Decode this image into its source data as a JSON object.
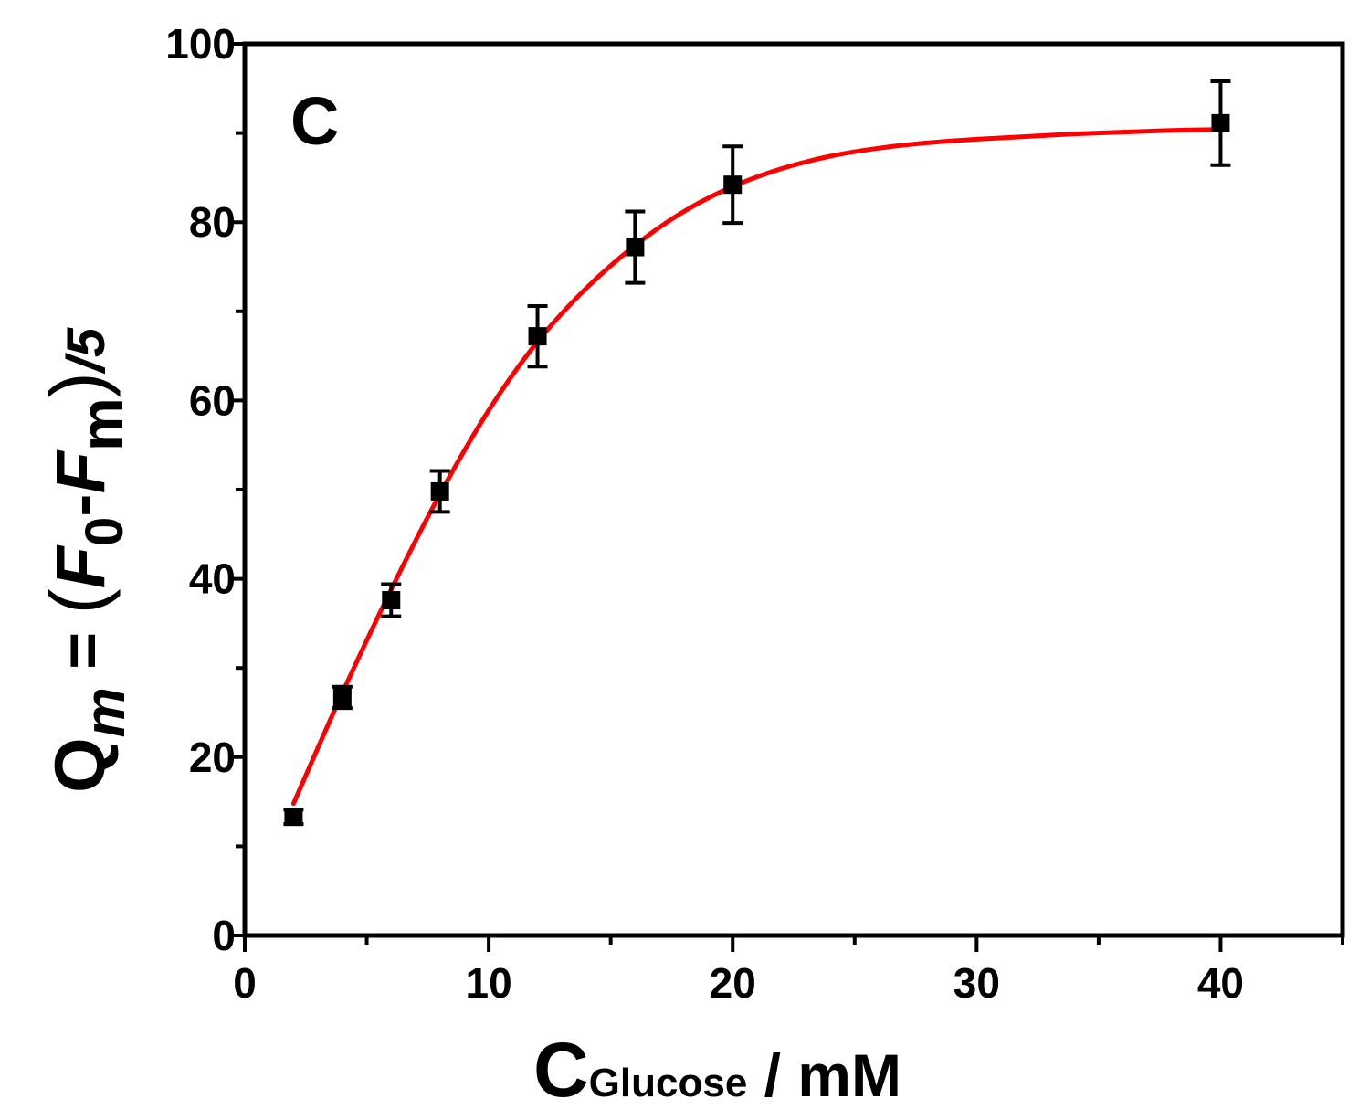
{
  "chart_data": {
    "type": "scatter",
    "panel_label": "C",
    "xlabel": {
      "main": "C",
      "subscript": "Glucose",
      "unit": " / mM"
    },
    "ylabel": {
      "lhs_main": "Q",
      "lhs_sub": "m",
      "eq": " = ",
      "lparen": "(",
      "f0_main": "F",
      "f0_sub": "0",
      "minus": "-",
      "fm_main": "F",
      "fm_sub": "m",
      "rparen": ")",
      "tail": "/5"
    },
    "xlim": [
      0,
      45
    ],
    "ylim": [
      0,
      100
    ],
    "x_ticks": [
      0,
      10,
      20,
      30,
      40
    ],
    "y_ticks": [
      0,
      20,
      40,
      60,
      80,
      100
    ],
    "x_tick_labels": [
      "0",
      "10",
      "20",
      "30",
      "40"
    ],
    "y_tick_labels": [
      "0",
      "20",
      "40",
      "60",
      "80",
      "100"
    ],
    "grid": false,
    "series": [
      {
        "marker": "square",
        "color": "#000000",
        "x": [
          2,
          4,
          6,
          8,
          12,
          16,
          20,
          40
        ],
        "y": [
          13.3,
          26.7,
          37.6,
          49.8,
          67.2,
          77.2,
          84.2,
          91.1
        ],
        "error": [
          0.8,
          1.2,
          1.8,
          2.3,
          3.4,
          4.0,
          4.3,
          4.7
        ]
      }
    ],
    "fit_curve": {
      "color": "#ff0000",
      "x": [
        2,
        4,
        6,
        8,
        10,
        12,
        14,
        16,
        18,
        20,
        22,
        24,
        26,
        28,
        30,
        32,
        34,
        36,
        38,
        40
      ],
      "y": [
        14.8,
        27.2,
        38.8,
        49.5,
        58.9,
        66.6,
        72.6,
        77.4,
        81.2,
        84.0,
        86.0,
        87.4,
        88.3,
        88.9,
        89.3,
        89.6,
        89.9,
        90.1,
        90.3,
        90.4
      ]
    }
  },
  "colors": {
    "axis": "#000000",
    "fit": "#ff0000",
    "marker": "#000000"
  }
}
